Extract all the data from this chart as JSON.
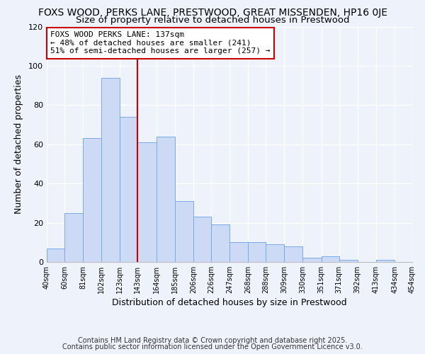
{
  "title_line1": "FOXS WOOD, PERKS LANE, PRESTWOOD, GREAT MISSENDEN, HP16 0JE",
  "title_line2": "Size of property relative to detached houses in Prestwood",
  "xlabel": "Distribution of detached houses by size in Prestwood",
  "ylabel": "Number of detached properties",
  "bar_left_edges": [
    40,
    60,
    81,
    102,
    123,
    143,
    164,
    185,
    206,
    226,
    247,
    268,
    288,
    309,
    330,
    351,
    371,
    392,
    413,
    434
  ],
  "bar_widths": [
    20,
    21,
    21,
    21,
    20,
    21,
    21,
    21,
    20,
    21,
    21,
    20,
    21,
    21,
    21,
    20,
    21,
    21,
    21,
    20
  ],
  "bar_heights": [
    7,
    25,
    63,
    94,
    74,
    61,
    64,
    31,
    23,
    19,
    10,
    10,
    9,
    8,
    2,
    3,
    1,
    0,
    1,
    0
  ],
  "tick_labels": [
    "40sqm",
    "60sqm",
    "81sqm",
    "102sqm",
    "123sqm",
    "143sqm",
    "164sqm",
    "185sqm",
    "206sqm",
    "226sqm",
    "247sqm",
    "268sqm",
    "288sqm",
    "309sqm",
    "330sqm",
    "351sqm",
    "371sqm",
    "392sqm",
    "413sqm",
    "434sqm",
    "454sqm"
  ],
  "tick_positions": [
    40,
    60,
    81,
    102,
    123,
    143,
    164,
    185,
    206,
    226,
    247,
    268,
    288,
    309,
    330,
    351,
    371,
    392,
    413,
    434,
    454
  ],
  "bar_fill_color": "#ccdaf5",
  "bar_edge_color": "#7aaae8",
  "vline_x": 143,
  "vline_color": "#cc0000",
  "ylim": [
    0,
    120
  ],
  "xlim_left": 40,
  "xlim_right": 454,
  "annotation_title": "FOXS WOOD PERKS LANE: 137sqm",
  "annotation_line2": "← 48% of detached houses are smaller (241)",
  "annotation_line3": "51% of semi-detached houses are larger (257) →",
  "annotation_box_color": "#ffffff",
  "annotation_box_edge": "#cc0000",
  "footnote1": "Contains HM Land Registry data © Crown copyright and database right 2025.",
  "footnote2": "Contains public sector information licensed under the Open Government Licence v3.0.",
  "bg_color": "#edf2fb",
  "plot_bg_color": "#edf2fb",
  "grid_color": "#ffffff",
  "title_fontsize": 10,
  "subtitle_fontsize": 9.5,
  "axis_label_fontsize": 9,
  "tick_fontsize": 7,
  "annotation_fontsize": 8,
  "footnote_fontsize": 7,
  "ytick_values": [
    0,
    20,
    40,
    60,
    80,
    100,
    120
  ]
}
